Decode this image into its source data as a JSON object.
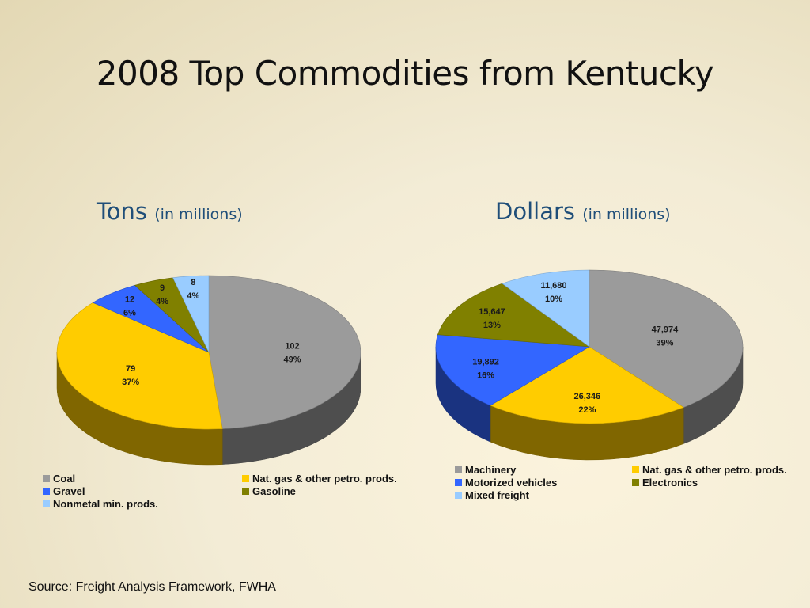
{
  "title": "2008 Top Commodities from Kentucky",
  "source": "Source: Freight Analysis Framework, FWHA",
  "colors": {
    "gray": "#9b9b9b",
    "yellow": "#ffcc00",
    "blue": "#3366ff",
    "olive": "#808000",
    "lightblue": "#99ccff"
  },
  "chart_data": [
    {
      "type": "pie",
      "title": "Tons",
      "subtitle": "(in millions)",
      "categories": [
        "Coal",
        "Nat. gas & other petro. prods.",
        "Gravel",
        "Gasoline",
        "Nonmetal min. prods."
      ],
      "values": [
        102,
        79,
        12,
        9,
        8
      ],
      "value_labels": [
        "102",
        "79",
        "12",
        "9",
        "8"
      ],
      "percent_labels": [
        "49%",
        "37%",
        "6%",
        "4%",
        "4%"
      ],
      "colors": [
        "#9b9b9b",
        "#ffcc00",
        "#3366ff",
        "#808000",
        "#99ccff"
      ],
      "legend_placement": "bottom"
    },
    {
      "type": "pie",
      "title": "Dollars",
      "subtitle": "(in millions)",
      "categories": [
        "Machinery",
        "Nat. gas & other petro. prods.",
        "Motorized vehicles",
        "Electronics",
        "Mixed freight"
      ],
      "values": [
        47974,
        26346,
        19892,
        15647,
        11680
      ],
      "value_labels": [
        "47,974",
        "26,346",
        "19,892",
        "15,647",
        "11,680"
      ],
      "percent_labels": [
        "39%",
        "22%",
        "16%",
        "13%",
        "10%"
      ],
      "colors": [
        "#9b9b9b",
        "#ffcc00",
        "#3366ff",
        "#808000",
        "#99ccff"
      ],
      "legend_placement": "bottom"
    }
  ]
}
